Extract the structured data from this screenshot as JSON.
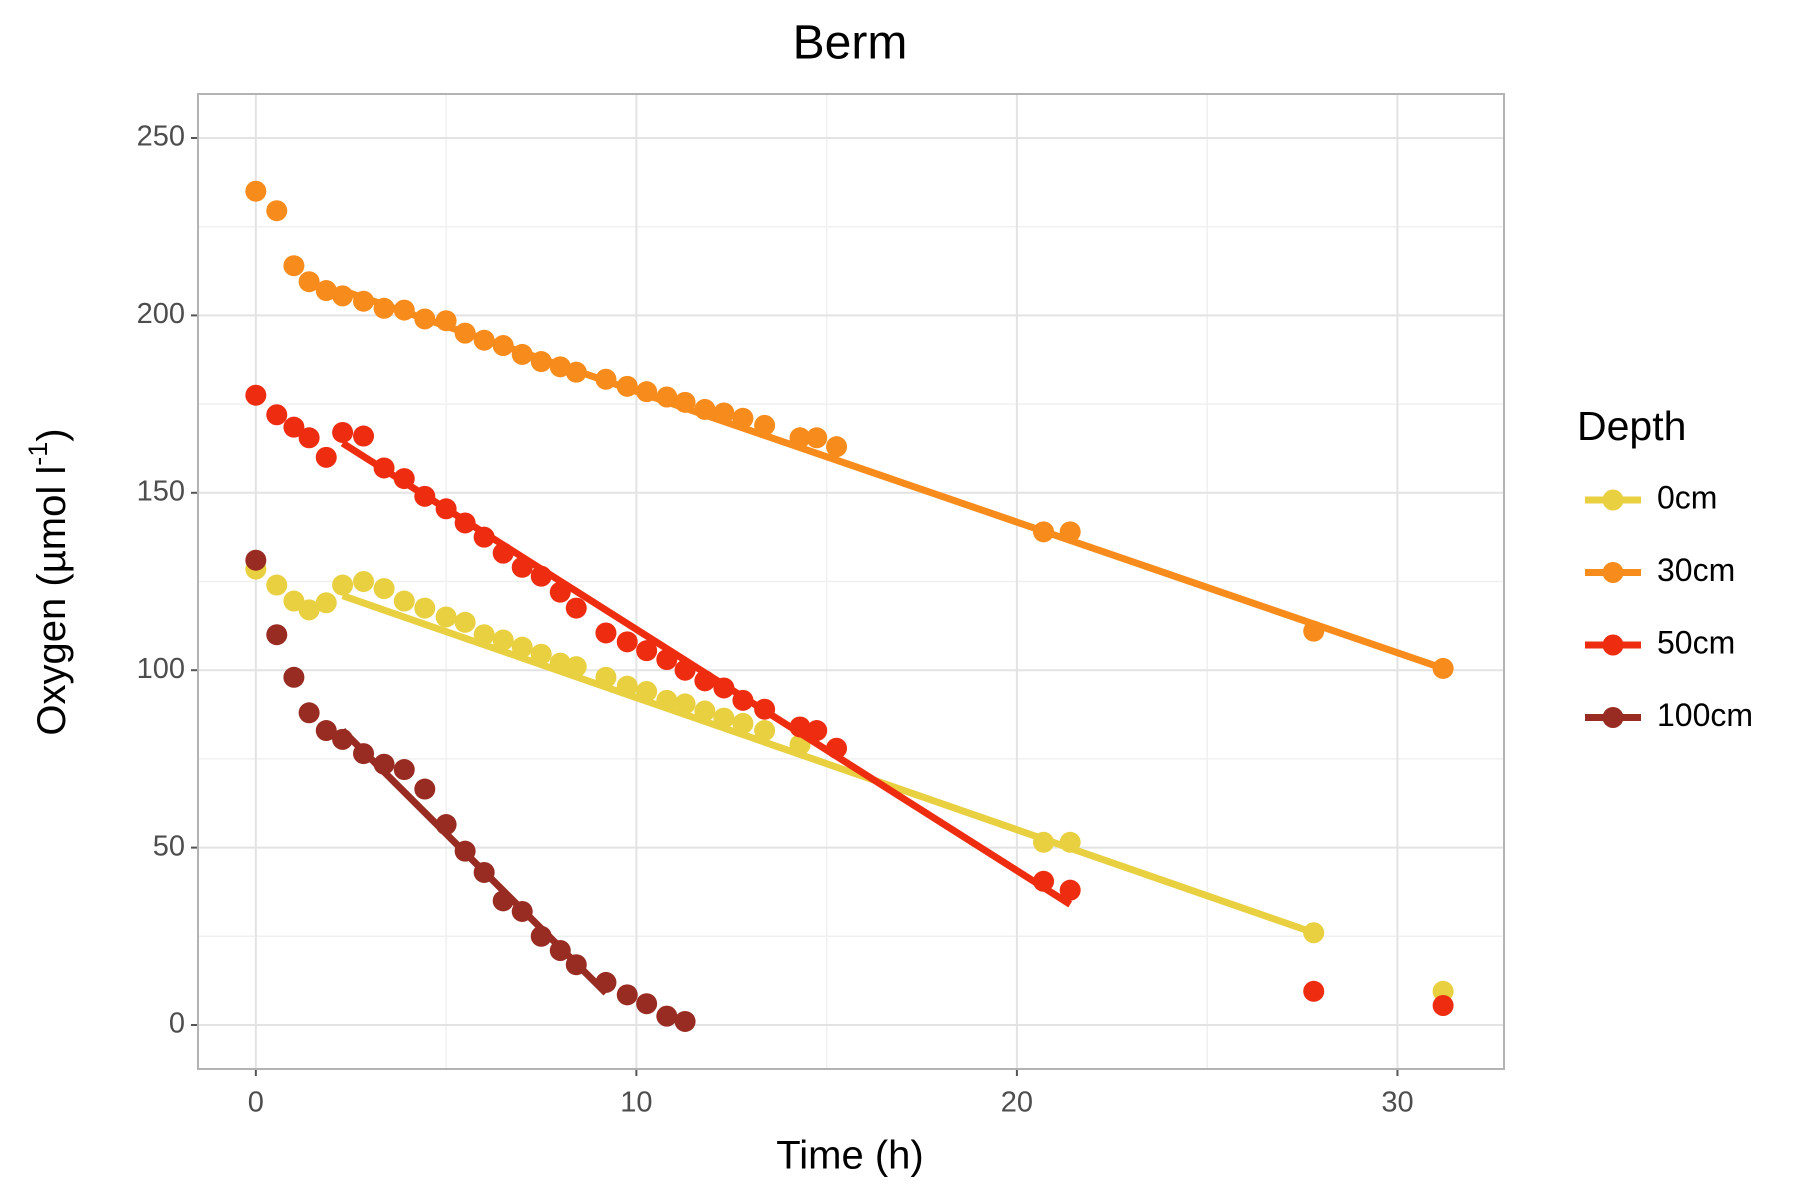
{
  "chart_data": {
    "type": "scatter",
    "title": "Berm",
    "x_label": "Time (h)",
    "y_label": "Oxygen (µmol l",
    "y_label_sup": "-1",
    "y_label_end": ")",
    "legend_title": "Depth",
    "legend_position": "right",
    "grid": true,
    "xlim": [
      -1.52,
      32.8
    ],
    "ylim": [
      -12.4,
      262.4
    ],
    "xticks": [
      0,
      10,
      20,
      30
    ],
    "yticks": [
      0,
      50,
      100,
      150,
      200,
      250
    ],
    "x_minor_ticks": [
      5,
      15,
      25
    ],
    "y_minor_ticks": [
      25,
      75,
      125,
      175,
      225
    ],
    "series": [
      {
        "name": "0cm",
        "color": "#e8d040",
        "x": [
          0,
          0.55,
          1.0,
          1.4,
          1.85,
          2.28,
          2.83,
          3.37,
          3.9,
          4.44,
          5.0,
          5.5,
          6.0,
          6.5,
          7.0,
          7.5,
          8.0,
          8.42,
          9.2,
          9.76,
          10.27,
          10.8,
          11.28,
          11.8,
          12.3,
          12.8,
          13.37,
          14.3,
          20.7,
          21.4,
          27.8,
          31.2
        ],
        "values": [
          128.5,
          124,
          119.5,
          117,
          119,
          124,
          125,
          123,
          119.5,
          117.5,
          115,
          113.5,
          110,
          108.5,
          106.5,
          104.5,
          102,
          101,
          98,
          95.5,
          94,
          91.5,
          90.5,
          88.5,
          86.5,
          85,
          83,
          79,
          51.5,
          51.5,
          26,
          9.5
        ],
        "fit_x": [
          2.28,
          27.8
        ],
        "fit_values": [
          121,
          26
        ]
      },
      {
        "name": "30cm",
        "color": "#f78c1c",
        "x": [
          0,
          0.55,
          1.0,
          1.4,
          1.85,
          2.28,
          2.83,
          3.37,
          3.9,
          4.44,
          5.0,
          5.5,
          6.0,
          6.5,
          7.0,
          7.5,
          8.0,
          8.42,
          9.2,
          9.76,
          10.27,
          10.8,
          11.28,
          11.8,
          12.3,
          12.8,
          13.37,
          14.3,
          14.74,
          15.26,
          20.7,
          21.4,
          27.8,
          31.2
        ],
        "values": [
          235,
          229.5,
          214,
          209.5,
          207,
          205.5,
          204,
          202,
          201.5,
          199,
          198.5,
          195,
          193,
          191.5,
          189,
          187,
          185.5,
          184,
          182,
          180,
          178.5,
          177,
          175.5,
          173.5,
          172.5,
          171,
          169,
          165.5,
          165.5,
          163,
          139,
          139,
          111,
          100.5
        ],
        "fit_x": [
          2.28,
          31.2
        ],
        "fit_values": [
          207,
          100.5
        ]
      },
      {
        "name": "50cm",
        "color": "#ee2c10",
        "x": [
          0,
          0.55,
          1.0,
          1.4,
          1.85,
          2.28,
          2.83,
          3.37,
          3.9,
          4.44,
          5.0,
          5.5,
          6.0,
          6.5,
          7.0,
          7.5,
          8.0,
          8.42,
          9.2,
          9.76,
          10.27,
          10.8,
          11.28,
          11.8,
          12.3,
          12.8,
          13.37,
          14.3,
          14.74,
          15.26,
          20.7,
          21.4,
          27.8,
          31.2
        ],
        "values": [
          177.5,
          172,
          168.5,
          165.5,
          160,
          167,
          166,
          157,
          154,
          149,
          145.5,
          141.5,
          137.5,
          133,
          129,
          126.5,
          122,
          117.5,
          110.5,
          108,
          105.5,
          103,
          100,
          97,
          95,
          91.5,
          89,
          84,
          83,
          78,
          40.5,
          38,
          9.5,
          5.5
        ],
        "fit_x": [
          2.28,
          21.4
        ],
        "fit_values": [
          164,
          34
        ]
      },
      {
        "name": "100cm",
        "color": "#982b22",
        "x": [
          0,
          0.55,
          1.0,
          1.4,
          1.85,
          2.28,
          2.83,
          3.37,
          3.9,
          4.44,
          5.0,
          5.5,
          6.0,
          6.5,
          7.0,
          7.5,
          8.0,
          8.42,
          9.2,
          9.76,
          10.27,
          10.8,
          11.28
        ],
        "values": [
          131,
          110,
          98,
          88,
          83,
          80.5,
          76.5,
          73.5,
          72,
          66.5,
          56.5,
          49,
          43,
          35,
          32,
          25,
          21,
          17,
          12,
          8.5,
          6,
          2.5,
          1
        ],
        "fit_x": [
          2.28,
          9.2
        ],
        "fit_values": [
          83,
          9
        ]
      }
    ]
  }
}
